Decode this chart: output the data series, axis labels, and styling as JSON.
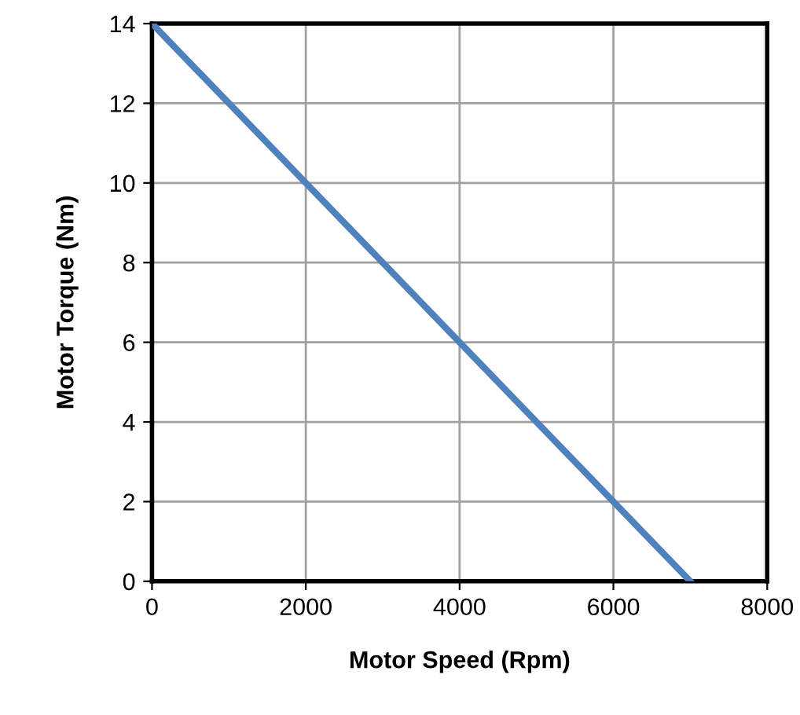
{
  "chart_data": {
    "type": "line",
    "xlabel": "Motor Speed (Rpm)",
    "ylabel": "Motor Torque (Nm)",
    "x": [
      0,
      7000
    ],
    "series": [
      {
        "color": "#4f81bd",
        "values": [
          14,
          0
        ]
      }
    ],
    "xlim": [
      0,
      8000
    ],
    "xticks": [
      0,
      2000,
      4000,
      6000,
      8000
    ],
    "ylim": [
      0,
      14
    ],
    "yticks": [
      0,
      2,
      4,
      6,
      8,
      10,
      12,
      14
    ],
    "grid": true,
    "legend": false,
    "marker": "none",
    "line_style": "solid"
  }
}
